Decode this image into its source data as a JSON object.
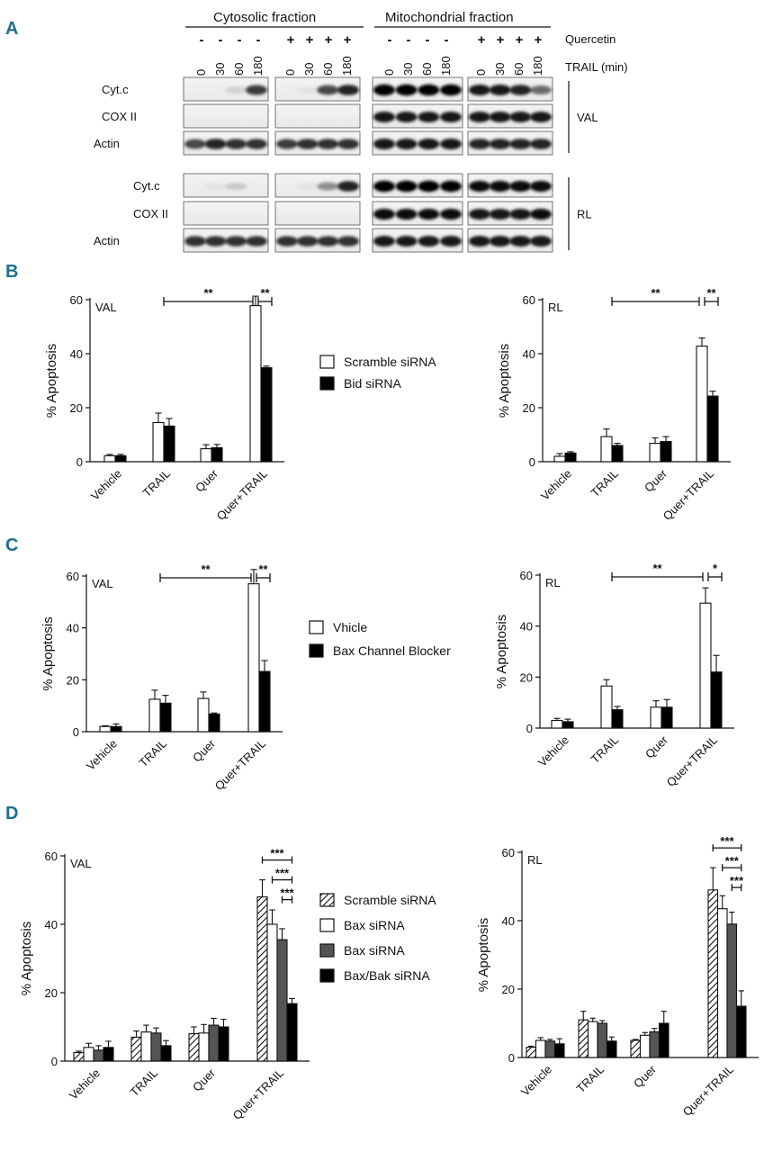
{
  "panel_letters": [
    "A",
    "B",
    "C",
    "D"
  ],
  "blot": {
    "fraction_titles": [
      "Cytosolic fraction",
      "Mitochondrial fraction"
    ],
    "quercetin_label": "Quercetin",
    "trail_label": "TRAIL (min)",
    "quercetin_signs": [
      "-",
      "-",
      "-",
      "-",
      "+",
      "+",
      "+",
      "+",
      "-",
      "-",
      "-",
      "-",
      "+",
      "+",
      "+",
      "+"
    ],
    "time_points": [
      "0",
      "30",
      "60",
      "180",
      "0",
      "30",
      "60",
      "180",
      "0",
      "30",
      "60",
      "180",
      "0",
      "30",
      "60",
      "180"
    ],
    "cell_lines": [
      {
        "name": "VAL",
        "rows": [
          "Cyt.c",
          "COX II",
          "Actin"
        ]
      },
      {
        "name": "RL",
        "rows": [
          "Cyt.c",
          "COX II",
          "Actin"
        ]
      }
    ]
  },
  "chart_data": [
    {
      "id": "B-VAL",
      "type": "bar",
      "title": "VAL",
      "ylabel": "% Apoptosis",
      "ylim": [
        0,
        60
      ],
      "yticks": [
        "0",
        "20",
        "40",
        "60"
      ],
      "categories": [
        "Vehicle",
        "TRAIL",
        "Quer",
        "Quer+TRAIL"
      ],
      "series": [
        {
          "name": "Scramble siRNA",
          "values": [
            2.2,
            14.5,
            4.8,
            57.8
          ],
          "errors": [
            0.5,
            3.5,
            1.5,
            3.5
          ]
        },
        {
          "name": "Bid siRNA",
          "values": [
            2.2,
            13.2,
            5.2,
            34.8
          ],
          "errors": [
            0.5,
            2.8,
            1.2,
            0.6
          ]
        }
      ],
      "significance": [
        {
          "label": "**",
          "from": "TRAIL",
          "to": "Quer+TRAIL"
        },
        {
          "label": "**",
          "within": "Quer+TRAIL"
        }
      ]
    },
    {
      "id": "B-RL",
      "type": "bar",
      "title": "RL",
      "ylabel": "% Apoptosis",
      "ylim": [
        0,
        60
      ],
      "yticks": [
        "0",
        "20",
        "40",
        "60"
      ],
      "categories": [
        "Vehicle",
        "TRAIL",
        "Quer",
        "Quer+TRAIL"
      ],
      "series": [
        {
          "name": "Scramble siRNA",
          "values": [
            2.0,
            9.3,
            6.8,
            42.8
          ],
          "errors": [
            1.0,
            2.8,
            2.0,
            3.0
          ]
        },
        {
          "name": "Bid siRNA",
          "values": [
            3.2,
            6.0,
            7.5,
            24.3
          ],
          "errors": [
            0.5,
            0.8,
            1.8,
            1.8
          ]
        }
      ],
      "significance": [
        {
          "label": "**",
          "from": "TRAIL",
          "to": "Quer+TRAIL"
        },
        {
          "label": "**",
          "within": "Quer+TRAIL"
        }
      ]
    },
    {
      "id": "C-VAL",
      "type": "bar",
      "title": "VAL",
      "ylabel": "% Apoptosis",
      "ylim": [
        0,
        60
      ],
      "yticks": [
        "0",
        "20",
        "40",
        "60"
      ],
      "categories": [
        "Vehicle",
        "TRAIL",
        "Quer",
        "Quer+TRAIL"
      ],
      "series": [
        {
          "name": "Vhicle",
          "values": [
            2.0,
            12.5,
            12.8,
            57.0
          ],
          "errors": [
            0.3,
            3.5,
            2.5,
            5.5
          ]
        },
        {
          "name": "Bax Channel Blocker",
          "values": [
            2.0,
            11.0,
            6.8,
            23.2
          ],
          "errors": [
            1.0,
            3.0,
            0.4,
            4.2
          ]
        }
      ],
      "significance": [
        {
          "label": "**",
          "from": "TRAIL",
          "to": "Quer+TRAIL"
        },
        {
          "label": "**",
          "within": "Quer+TRAIL"
        }
      ]
    },
    {
      "id": "C-RL",
      "type": "bar",
      "title": "RL",
      "ylabel": "% Apoptosis",
      "ylim": [
        0,
        60
      ],
      "yticks": [
        "0",
        "20",
        "40",
        "60"
      ],
      "categories": [
        "Vehicle",
        "TRAIL",
        "Quer",
        "Quer+TRAIL"
      ],
      "series": [
        {
          "name": "Vhicle",
          "values": [
            3.0,
            16.5,
            8.2,
            49.0
          ],
          "errors": [
            0.8,
            2.5,
            2.5,
            6.0
          ]
        },
        {
          "name": "Bax Channel Blocker",
          "values": [
            2.5,
            7.2,
            8.2,
            22.0
          ],
          "errors": [
            1.0,
            1.3,
            3.0,
            6.5
          ]
        }
      ],
      "significance": [
        {
          "label": "**",
          "from": "TRAIL",
          "to": "Quer+TRAIL"
        },
        {
          "label": "*",
          "within": "Quer+TRAIL"
        }
      ]
    },
    {
      "id": "D-VAL",
      "type": "bar",
      "title": "VAL",
      "ylabel": "% Apoptosis",
      "ylim": [
        0,
        60
      ],
      "yticks": [
        "0",
        "20",
        "40",
        "60"
      ],
      "categories": [
        "Vehicle",
        "TRAIL",
        "Quer",
        "Quer+TRAIL"
      ],
      "series": [
        {
          "name": "Scramble siRNA",
          "values": [
            2.5,
            7.0,
            8.0,
            48.0
          ],
          "errors": [
            0.4,
            1.8,
            2.0,
            5.0
          ]
        },
        {
          "name": "Bax siRNA",
          "values": [
            4.0,
            8.5,
            8.2,
            40.0
          ],
          "errors": [
            1.2,
            2.0,
            2.5,
            4.2
          ]
        },
        {
          "name": "Bax siRNA",
          "values": [
            3.2,
            8.2,
            10.5,
            35.5
          ],
          "errors": [
            1.3,
            1.5,
            2.0,
            3.2
          ]
        },
        {
          "name": "Bax/Bak siRNA",
          "values": [
            4.0,
            4.5,
            10.0,
            16.8
          ],
          "errors": [
            1.8,
            1.5,
            2.2,
            1.5
          ]
        }
      ],
      "significance": [
        {
          "label": "***",
          "series": [
            1,
            4
          ]
        },
        {
          "label": "***",
          "series": [
            2,
            4
          ]
        },
        {
          "label": "***",
          "series": [
            3,
            4
          ]
        }
      ]
    },
    {
      "id": "D-RL",
      "type": "bar",
      "title": "RL",
      "ylabel": "% Apoptosis",
      "ylim": [
        0,
        60
      ],
      "yticks": [
        "0",
        "20",
        "40",
        "60"
      ],
      "categories": [
        "Vehicle",
        "TRAIL",
        "Quer",
        "Quer+TRAIL"
      ],
      "series": [
        {
          "name": "Scramble siRNA",
          "values": [
            3.0,
            11.0,
            5.0,
            49.0
          ],
          "errors": [
            0.3,
            2.5,
            0.3,
            6.5
          ]
        },
        {
          "name": "Bax siRNA",
          "values": [
            5.0,
            10.5,
            6.5,
            43.5
          ],
          "errors": [
            0.8,
            1.0,
            0.8,
            3.8
          ]
        },
        {
          "name": "Bax siRNA",
          "values": [
            4.8,
            10.0,
            7.5,
            39.0
          ],
          "errors": [
            0.5,
            0.8,
            1.0,
            3.5
          ]
        },
        {
          "name": "Bax/Bak siRNA",
          "values": [
            4.0,
            4.8,
            10.0,
            15.0
          ],
          "errors": [
            1.5,
            1.2,
            3.5,
            4.5
          ]
        }
      ],
      "significance": [
        {
          "label": "***",
          "series": [
            1,
            4
          ]
        },
        {
          "label": "***",
          "series": [
            2,
            4
          ]
        },
        {
          "label": "***",
          "series": [
            3,
            4
          ]
        }
      ]
    }
  ],
  "legends": {
    "B": [
      "Scramble siRNA",
      "Bid siRNA"
    ],
    "C": [
      "Vhicle",
      "Bax Channel Blocker"
    ],
    "D": [
      "Scramble siRNA",
      "Bax siRNA",
      "Bax siRNA",
      "Bax/Bak siRNA"
    ]
  },
  "fills": {
    "B": [
      "white",
      "black"
    ],
    "C": [
      "white",
      "black"
    ],
    "D": [
      "hatch",
      "white",
      "gray",
      "black"
    ]
  },
  "colors": {
    "panel_letter": "#1d6f8f",
    "gray_bar": "#555555",
    "black_bar": "#000000"
  }
}
